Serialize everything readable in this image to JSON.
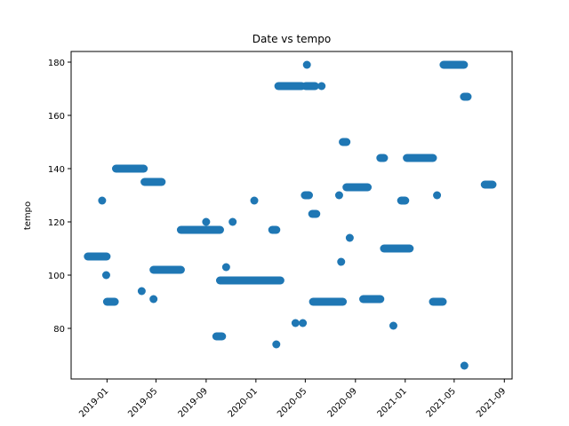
{
  "chart_data": {
    "type": "scatter",
    "title": "Date vs tempo",
    "xlabel": "",
    "ylabel": "tempo",
    "x_axis": "date",
    "xlim": [
      "2018-10-05",
      "2021-09-20"
    ],
    "ylim": [
      61,
      184
    ],
    "yticks": [
      80,
      100,
      120,
      140,
      160,
      180
    ],
    "xticks": [
      "2019-01",
      "2019-05",
      "2019-09",
      "2020-01",
      "2020-05",
      "2020-09",
      "2021-01",
      "2021-05",
      "2021-09"
    ],
    "color": "#1f77b4",
    "grid": false,
    "runs": [
      {
        "start": "2018-11-15",
        "end": "2018-12-31",
        "y": 107
      },
      {
        "start": "2019-01-01",
        "end": "2019-01-20",
        "y": 90
      },
      {
        "start": "2019-01-23",
        "end": "2019-04-01",
        "y": 140
      },
      {
        "start": "2019-04-03",
        "end": "2019-05-15",
        "y": 135
      },
      {
        "start": "2019-04-25",
        "end": "2019-07-01",
        "y": 102
      },
      {
        "start": "2019-07-01",
        "end": "2019-10-05",
        "y": 117
      },
      {
        "start": "2019-09-26",
        "end": "2019-10-10",
        "y": 77
      },
      {
        "start": "2019-10-05",
        "end": "2020-03-01",
        "y": 98
      },
      {
        "start": "2020-02-10",
        "end": "2020-02-20",
        "y": 117
      },
      {
        "start": "2020-02-25",
        "end": "2020-04-22",
        "y": 171
      },
      {
        "start": "2020-04-30",
        "end": "2020-05-10",
        "y": 130
      },
      {
        "start": "2020-05-02",
        "end": "2020-05-25",
        "y": 171
      },
      {
        "start": "2020-05-18",
        "end": "2020-05-28",
        "y": 123
      },
      {
        "start": "2020-05-20",
        "end": "2020-08-01",
        "y": 90
      },
      {
        "start": "2020-08-01",
        "end": "2020-08-10",
        "y": 150
      },
      {
        "start": "2020-08-10",
        "end": "2020-10-01",
        "y": 133
      },
      {
        "start": "2020-09-20",
        "end": "2020-11-01",
        "y": 91
      },
      {
        "start": "2020-11-01",
        "end": "2020-11-10",
        "y": 144
      },
      {
        "start": "2020-11-10",
        "end": "2021-01-12",
        "y": 110
      },
      {
        "start": "2020-12-22",
        "end": "2021-01-01",
        "y": 128
      },
      {
        "start": "2021-01-05",
        "end": "2021-03-10",
        "y": 144
      },
      {
        "start": "2021-03-10",
        "end": "2021-04-03",
        "y": 90
      },
      {
        "start": "2021-04-05",
        "end": "2021-05-25",
        "y": 179
      },
      {
        "start": "2021-05-25",
        "end": "2021-06-03",
        "y": 167
      },
      {
        "start": "2021-07-15",
        "end": "2021-08-03",
        "y": 134
      }
    ],
    "points": [
      {
        "x": "2018-12-20",
        "y": 128
      },
      {
        "x": "2018-12-30",
        "y": 100
      },
      {
        "x": "2019-03-27",
        "y": 94
      },
      {
        "x": "2019-04-25",
        "y": 91
      },
      {
        "x": "2019-09-01",
        "y": 120
      },
      {
        "x": "2019-10-20",
        "y": 103
      },
      {
        "x": "2019-11-05",
        "y": 120
      },
      {
        "x": "2019-12-28",
        "y": 128
      },
      {
        "x": "2020-02-20",
        "y": 74
      },
      {
        "x": "2020-04-07",
        "y": 82
      },
      {
        "x": "2020-04-25",
        "y": 82
      },
      {
        "x": "2020-05-05",
        "y": 179
      },
      {
        "x": "2020-06-10",
        "y": 171
      },
      {
        "x": "2020-07-23",
        "y": 130
      },
      {
        "x": "2020-07-28",
        "y": 105
      },
      {
        "x": "2020-08-18",
        "y": 114
      },
      {
        "x": "2020-12-03",
        "y": 81
      },
      {
        "x": "2021-03-20",
        "y": 130
      },
      {
        "x": "2021-05-26",
        "y": 66
      }
    ]
  }
}
